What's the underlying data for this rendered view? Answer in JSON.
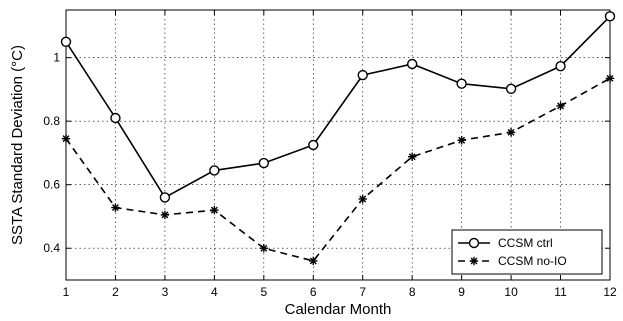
{
  "chart_data": {
    "type": "line",
    "title": "",
    "xlabel": "Calendar Month",
    "ylabel": "SSTA Standard Deviation (°C)",
    "xlim": [
      1,
      12
    ],
    "ylim": [
      0.3,
      1.15
    ],
    "xticks": [
      1,
      2,
      3,
      4,
      5,
      6,
      7,
      8,
      9,
      10,
      11,
      12
    ],
    "yticks": [
      0.4,
      0.6,
      0.8,
      1.0
    ],
    "ytick_labels": [
      "0.4",
      "0.6",
      "0.8",
      "1"
    ],
    "grid": true,
    "legend_position": "bottom-right",
    "x": [
      1,
      2,
      3,
      4,
      5,
      6,
      7,
      8,
      9,
      10,
      11,
      12
    ],
    "series": [
      {
        "name": "CCSM ctrl",
        "values": [
          1.05,
          0.81,
          0.56,
          0.645,
          0.668,
          0.725,
          0.945,
          0.98,
          0.918,
          0.902,
          0.973,
          1.13
        ],
        "line_style": "solid",
        "marker": "circle",
        "color": "#000000"
      },
      {
        "name": "CCSM no-IO",
        "values": [
          0.745,
          0.528,
          0.505,
          0.52,
          0.4,
          0.36,
          0.555,
          0.688,
          0.74,
          0.765,
          0.848,
          0.935
        ],
        "line_style": "dashed",
        "marker": "asterisk",
        "color": "#000000"
      }
    ]
  }
}
